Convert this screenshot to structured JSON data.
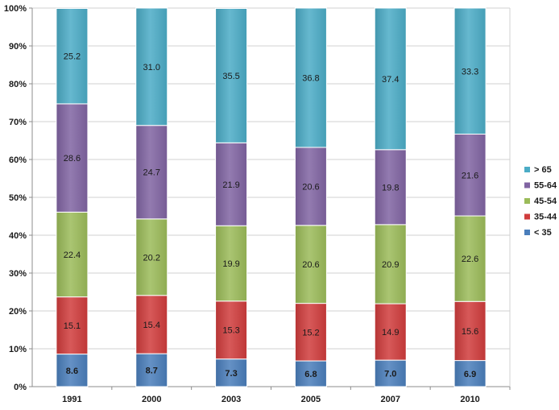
{
  "chart_data": {
    "type": "bar",
    "stacked": true,
    "percent": true,
    "title": "",
    "xlabel": "",
    "ylabel": "",
    "ylim": [
      0,
      100
    ],
    "y_ticks": [
      0,
      10,
      20,
      30,
      40,
      50,
      60,
      70,
      80,
      90,
      100
    ],
    "y_tick_labels": [
      "0%",
      "10%",
      "20%",
      "30%",
      "40%",
      "50%",
      "60%",
      "70%",
      "80%",
      "90%",
      "100%"
    ],
    "grid": true,
    "legend_position": "right",
    "categories": [
      "1991",
      "2000",
      "2003",
      "2005",
      "2007",
      "2010"
    ],
    "series": [
      {
        "name": "< 35",
        "color": "#4a7ebb",
        "values": [
          8.6,
          8.7,
          7.3,
          6.8,
          7.0,
          6.9
        ],
        "labels": [
          "8.6",
          "8.7",
          "7.3",
          "6.8",
          "7.0",
          "6.9"
        ]
      },
      {
        "name": "35-44",
        "color": "#d03c3c",
        "values": [
          15.1,
          15.4,
          15.3,
          15.2,
          14.9,
          15.6
        ],
        "labels": [
          "15.1",
          "15.4",
          "15.3",
          "15.2",
          "14.9",
          "15.6"
        ]
      },
      {
        "name": "45-54",
        "color": "#9bbb59",
        "values": [
          22.4,
          20.2,
          19.9,
          20.6,
          20.9,
          22.6
        ],
        "labels": [
          "22.4",
          "20.2",
          "19.9",
          "20.6",
          "20.9",
          "22.6"
        ]
      },
      {
        "name": "55-64",
        "color": "#8064a2",
        "values": [
          28.6,
          24.7,
          21.9,
          20.6,
          19.8,
          21.6
        ],
        "labels": [
          "28.6",
          "24.7",
          "21.9",
          "20.6",
          "19.8",
          "21.6"
        ]
      },
      {
        "name": "> 65",
        "color": "#4bacc6",
        "values": [
          25.2,
          31.0,
          35.5,
          36.8,
          37.4,
          33.3
        ],
        "labels": [
          "25.2",
          "31.0",
          "35.5",
          "36.8",
          "37.4",
          "33.3"
        ]
      }
    ]
  }
}
